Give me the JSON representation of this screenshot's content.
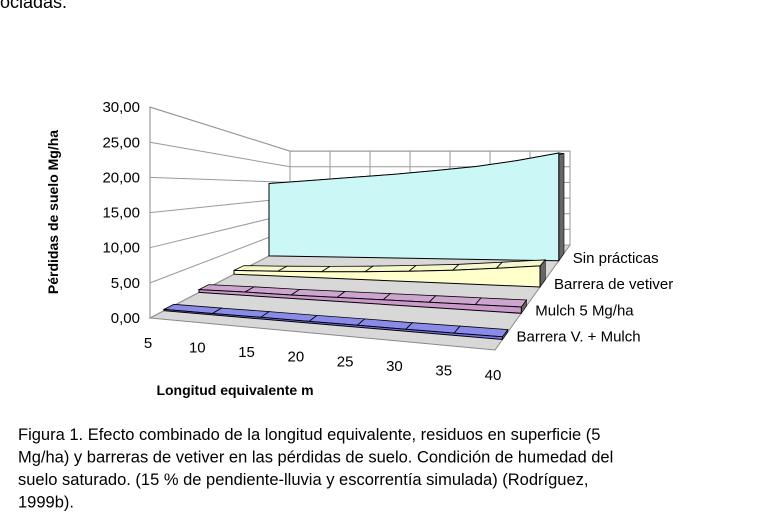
{
  "fragment": "ociadas.",
  "chart_data": {
    "type": "area3d",
    "y_label": "Pérdidas de suelo Mg/ha",
    "x_label": "Longitud equivalente m",
    "x": [
      5,
      10,
      15,
      20,
      25,
      30,
      35,
      40
    ],
    "ylim": [
      0,
      30
    ],
    "yticks": [
      {
        "value": 0,
        "label": "0,00"
      },
      {
        "value": 5,
        "label": "5,00"
      },
      {
        "value": 10,
        "label": "10,00"
      },
      {
        "value": 15,
        "label": "15,00"
      },
      {
        "value": 20,
        "label": "20,00"
      },
      {
        "value": 25,
        "label": "25,00"
      },
      {
        "value": 30,
        "label": "30,00"
      }
    ],
    "grid": true,
    "series": [
      {
        "name": "Sin prácticas",
        "color": "#ccf7f7",
        "values": [
          19.5,
          20.5,
          21.5,
          22.5,
          23.7,
          25,
          26.8,
          29
        ]
      },
      {
        "name": "Barrera de vetiver",
        "color": "#ffffcc",
        "values": [
          0.8,
          1.0,
          1.3,
          1.7,
          2.2,
          2.8,
          3.6,
          4.5
        ]
      },
      {
        "name": "Mulch 5 Mg/ha",
        "color": "#cc99cc",
        "values": [
          0.5,
          0.6,
          0.6,
          0.7,
          0.8,
          0.9,
          1.0,
          1.1
        ]
      },
      {
        "name": "Barrera V. + Mulch",
        "color": "#7777ee",
        "values": [
          0.2,
          0.2,
          0.25,
          0.25,
          0.3,
          0.3,
          0.35,
          0.4
        ]
      }
    ]
  },
  "caption": [
    "Figura 1. Efecto combinado de la longitud equivalente, residuos en superficie (5",
    "Mg/ha) y barreras de vetiver en las pérdidas de suelo. Condición de humedad del",
    "suelo saturado. (15 % de pendiente-lluvia y escorrentía simulada) (Rodríguez,",
    "1999b)."
  ]
}
